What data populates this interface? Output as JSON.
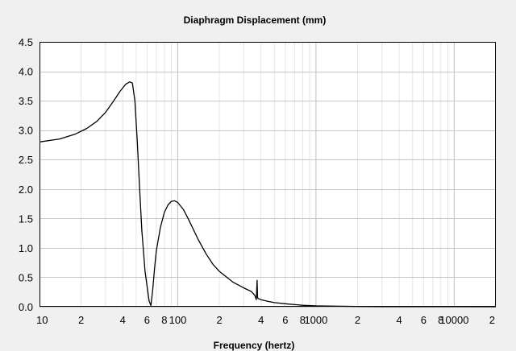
{
  "chart_data": {
    "type": "line",
    "title": "Diaphragm Displacement (mm)",
    "xlabel": "Frequency (hertz)",
    "ylabel": "",
    "x_scale": "log",
    "xlim": [
      10,
      20000
    ],
    "ylim": [
      0,
      4.5
    ],
    "grid": true,
    "y_ticks": [
      "0.0",
      "0.5",
      "1.0",
      "1.5",
      "2.0",
      "2.5",
      "3.0",
      "3.5",
      "4.0",
      "4.5"
    ],
    "x_ticks": [
      {
        "value": 10,
        "label": "10"
      },
      {
        "value": 20,
        "label": "2"
      },
      {
        "value": 40,
        "label": "4"
      },
      {
        "value": 60,
        "label": "6"
      },
      {
        "value": 80,
        "label": "8"
      },
      {
        "value": 100,
        "label": "100"
      },
      {
        "value": 200,
        "label": "2"
      },
      {
        "value": 400,
        "label": "4"
      },
      {
        "value": 600,
        "label": "6"
      },
      {
        "value": 800,
        "label": "8"
      },
      {
        "value": 1000,
        "label": "1000"
      },
      {
        "value": 2000,
        "label": "2"
      },
      {
        "value": 4000,
        "label": "4"
      },
      {
        "value": 6000,
        "label": "6"
      },
      {
        "value": 8000,
        "label": "8"
      },
      {
        "value": 10000,
        "label": "10000"
      },
      {
        "value": 20000,
        "label": "2"
      }
    ],
    "series": [
      {
        "color": "#000000",
        "x": [
          10,
          14,
          18,
          22,
          26,
          30,
          34,
          38,
          42,
          45,
          47,
          49,
          51,
          53,
          55,
          58,
          62,
          64,
          66,
          68,
          70,
          75,
          80,
          85,
          90,
          95,
          100,
          110,
          120,
          140,
          160,
          180,
          200,
          250,
          300,
          340,
          360,
          370,
          375,
          378,
          382,
          400,
          450,
          500,
          600,
          700,
          800,
          1000,
          1500,
          2000,
          3000,
          5000,
          10000,
          20000
        ],
        "y": [
          2.8,
          2.85,
          2.93,
          3.03,
          3.15,
          3.3,
          3.48,
          3.65,
          3.78,
          3.82,
          3.8,
          3.5,
          2.8,
          2.0,
          1.3,
          0.6,
          0.1,
          0.02,
          0.3,
          0.65,
          0.95,
          1.35,
          1.6,
          1.73,
          1.79,
          1.8,
          1.77,
          1.65,
          1.48,
          1.15,
          0.9,
          0.72,
          0.6,
          0.42,
          0.32,
          0.26,
          0.2,
          0.12,
          0.45,
          0.15,
          0.14,
          0.12,
          0.09,
          0.07,
          0.05,
          0.035,
          0.025,
          0.015,
          0.008,
          0.005,
          0.003,
          0.002,
          0.001,
          0.0
        ]
      }
    ]
  }
}
